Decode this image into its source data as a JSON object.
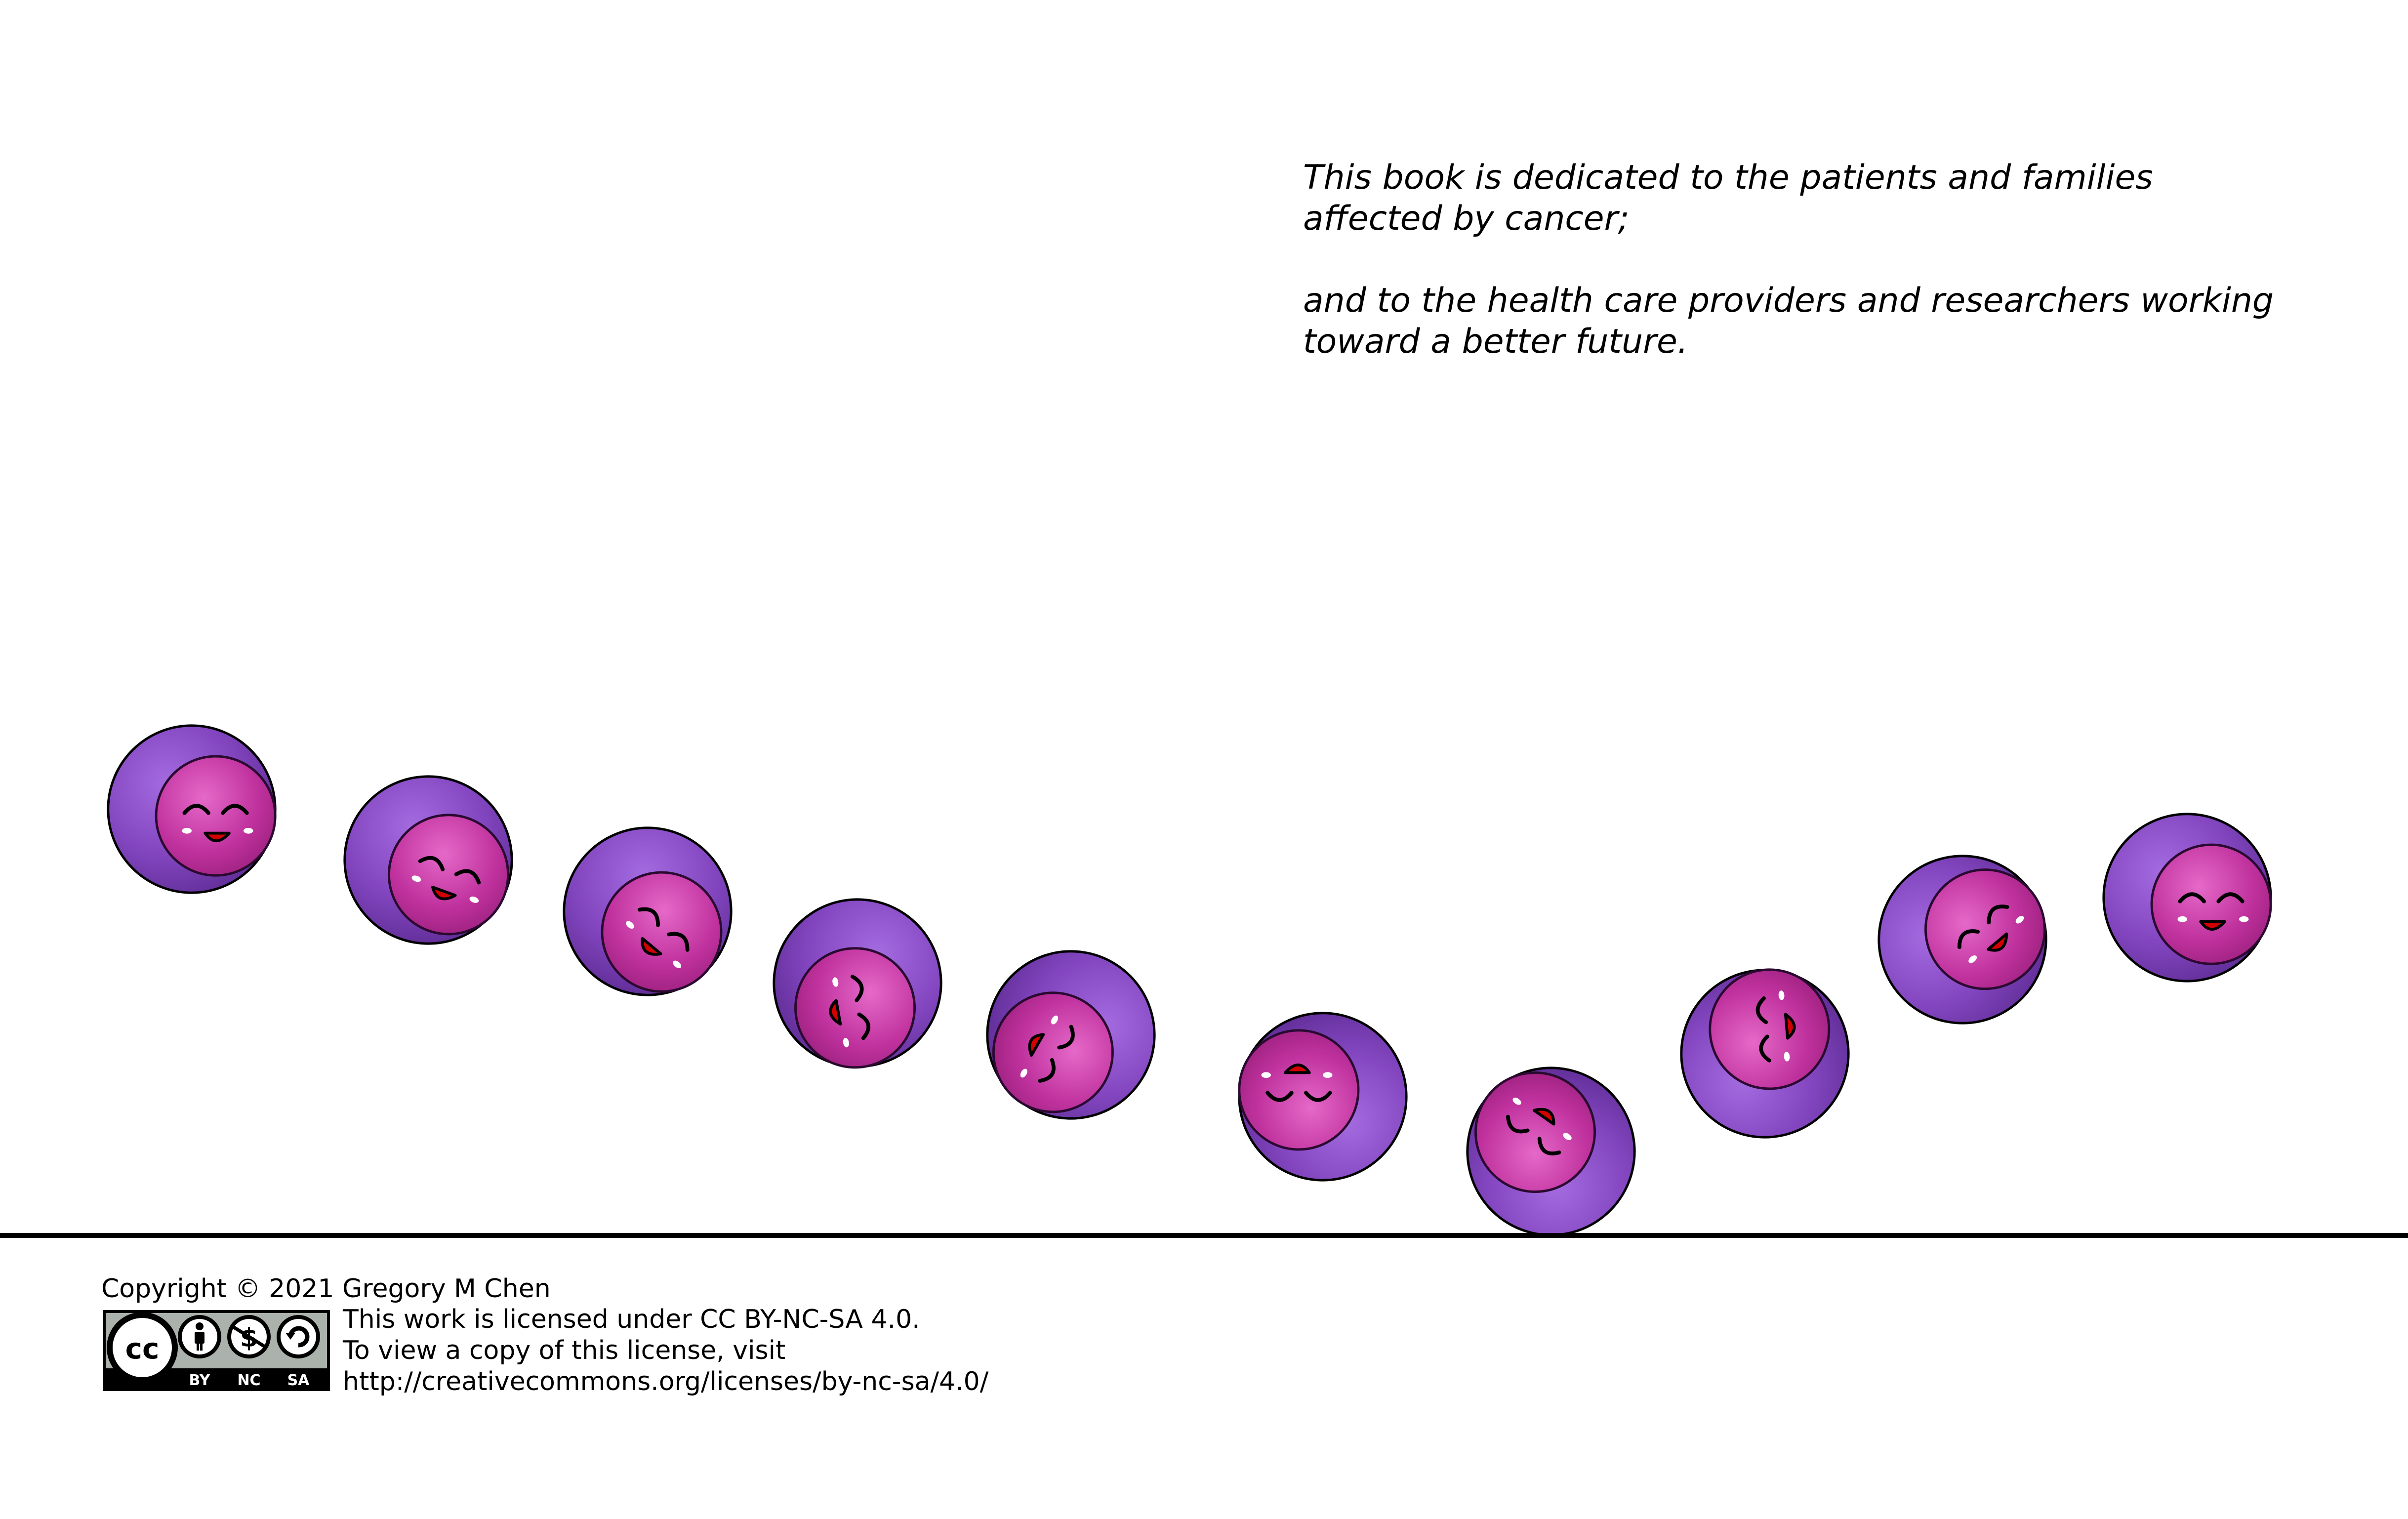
{
  "dedication": {
    "line1": "This book is dedicated to the patients and families",
    "line2": "affected by cancer;",
    "line3": "and to the health care providers and researchers working",
    "line4": "toward a better future."
  },
  "illustration": {
    "subject": "smiling purple cells rolling along a line",
    "cell_count": 10,
    "colors": {
      "outer": "#7a3fb0",
      "outer_highlight": "#9a5fd6",
      "inner": "#c2309b",
      "inner_highlight": "#e060c0",
      "mouth": "#d40000",
      "outline": "#000000"
    }
  },
  "footer": {
    "copyright": "Copyright © 2021 Gregory M Chen",
    "badge": {
      "cc": "cc",
      "by": "BY",
      "nc": "NC",
      "sa": "SA"
    },
    "license_line1": "This work is licensed under CC BY-NC-SA 4.0.",
    "license_line2": "To view a copy of this license, visit",
    "license_line3": "http://creativecommons.org/licenses/by-nc-sa/4.0/"
  }
}
